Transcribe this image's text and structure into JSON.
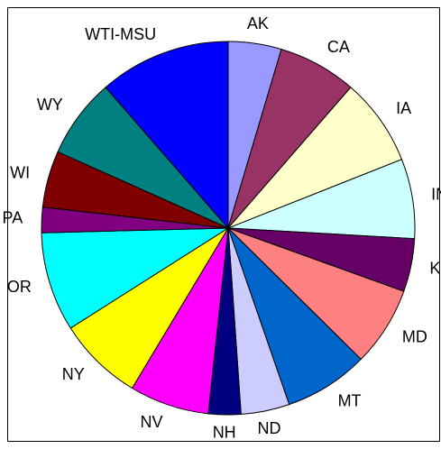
{
  "chart_data": {
    "type": "pie",
    "categories": [
      "AK",
      "CA",
      "IA",
      "IN",
      "KS",
      "MD",
      "MT",
      "ND",
      "NH",
      "NV",
      "NY",
      "OR",
      "PA",
      "WI",
      "WY",
      "WTI-MSU"
    ],
    "values": [
      4.6,
      6.8,
      7.6,
      6.9,
      4.6,
      6.9,
      7.3,
      4.2,
      2.8,
      6.9,
      7.4,
      8.6,
      2.2,
      4.9,
      6.9,
      11.4
    ],
    "colors": [
      "#9999ff",
      "#993366",
      "#ffffcc",
      "#ccffff",
      "#660066",
      "#ff8080",
      "#0066cc",
      "#ccccff",
      "#000080",
      "#ff00ff",
      "#ffff00",
      "#00ffff",
      "#800080",
      "#800000",
      "#008080",
      "#0000ff"
    ]
  }
}
